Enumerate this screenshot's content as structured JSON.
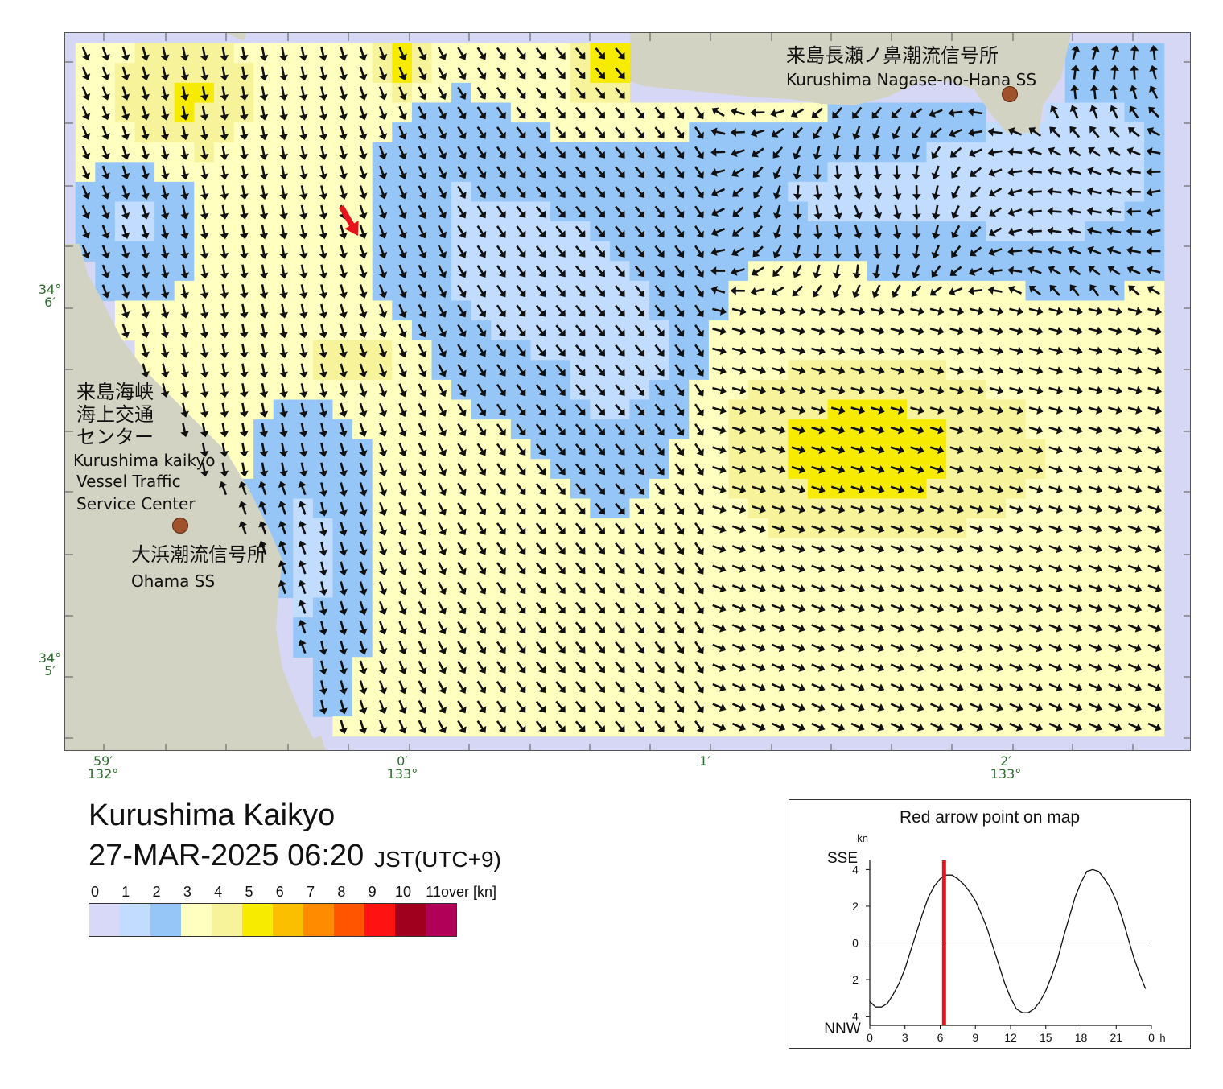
{
  "map": {
    "labels": {
      "nagase_jp": "来島長瀬ノ鼻潮流信号所",
      "nagase_en": "Kurushima Nagase-no-Hana SS",
      "vts_jp_1": "来島海峡",
      "vts_jp_2": "海上交通",
      "vts_jp_3": "センター",
      "vts_en_1": "Kurushima kaikyo",
      "vts_en_2": "Vessel Traffic",
      "vts_en_3": "Service Center",
      "ohama_jp": "大浜潮流信号所",
      "ohama_en": "Ohama SS"
    },
    "lat_labels": [
      {
        "deg": "34°",
        "min": "6′"
      },
      {
        "deg": "34°",
        "min": "5′"
      }
    ],
    "lon_labels": [
      {
        "min": "59′",
        "deg": "132°"
      },
      {
        "min": "0′",
        "deg": "133°"
      },
      {
        "min": "1′",
        "deg": ""
      },
      {
        "min": "2′",
        "deg": "133°"
      }
    ],
    "red_arrow_direction": "SSE",
    "colors": {
      "land": "#d3d3c3",
      "sea": "#d6d6f5",
      "arrow": "#111111",
      "red_arrow": "#e8141c",
      "station": "#a0522d"
    }
  },
  "info": {
    "title": "Kurushima Kaikyo",
    "datetime": "27-MAR-2025 06:20",
    "timezone": "JST(UTC+9)"
  },
  "legend": {
    "ticks": [
      "0",
      "1",
      "2",
      "3",
      "4",
      "5",
      "6",
      "7",
      "8",
      "9",
      "10",
      "11over [kn]"
    ],
    "colors": [
      "#d8d8f8",
      "#c2dcff",
      "#96c6f8",
      "#ffffc0",
      "#f7f39a",
      "#f7ec00",
      "#fcbf00",
      "#ff8c00",
      "#ff5500",
      "#ff1212",
      "#a0001e",
      "#b00058"
    ]
  },
  "inset": {
    "title": "Red arrow point on map",
    "unit": "kn",
    "top_direction": "SSE",
    "bottom_direction": "NNW",
    "y_ticks": [
      "4",
      "2",
      "0",
      "2",
      "4"
    ],
    "x_ticks": [
      "0",
      "3",
      "6",
      "9",
      "12",
      "15",
      "18",
      "21",
      "0"
    ],
    "x_unit": "h",
    "current_hour": 6.33,
    "chart_data": {
      "type": "line",
      "title": "Red arrow point on map",
      "ylabel": "kn",
      "ylim": [
        -4.5,
        4.5
      ],
      "xlim": [
        0,
        24
      ],
      "x": [
        0,
        0.5,
        1,
        1.5,
        2,
        2.5,
        3,
        3.5,
        4,
        4.5,
        5,
        5.5,
        6,
        6.5,
        7,
        7.5,
        8,
        8.5,
        9,
        9.5,
        10,
        10.5,
        11,
        11.5,
        12,
        12.5,
        13,
        13.5,
        14,
        14.5,
        15,
        15.5,
        16,
        16.5,
        17,
        17.5,
        18,
        18.5,
        19,
        19.5,
        20,
        20.5,
        21,
        21.5,
        22,
        22.5,
        23,
        23.5
      ],
      "y": [
        -3.2,
        -3.5,
        -3.5,
        -3.3,
        -2.8,
        -2.2,
        -1.4,
        -0.4,
        0.6,
        1.6,
        2.5,
        3.1,
        3.5,
        3.7,
        3.7,
        3.5,
        3.2,
        2.8,
        2.3,
        1.6,
        0.8,
        -0.2,
        -1.2,
        -2.2,
        -3.0,
        -3.6,
        -3.8,
        -3.8,
        -3.6,
        -3.2,
        -2.6,
        -1.8,
        -0.9,
        0.3,
        1.4,
        2.5,
        3.3,
        3.9,
        4.0,
        3.9,
        3.5,
        3.0,
        2.3,
        1.4,
        0.3,
        -0.8,
        -1.7,
        -2.5
      ],
      "marker_x": 6.33,
      "marker_color": "#e8141c"
    }
  }
}
